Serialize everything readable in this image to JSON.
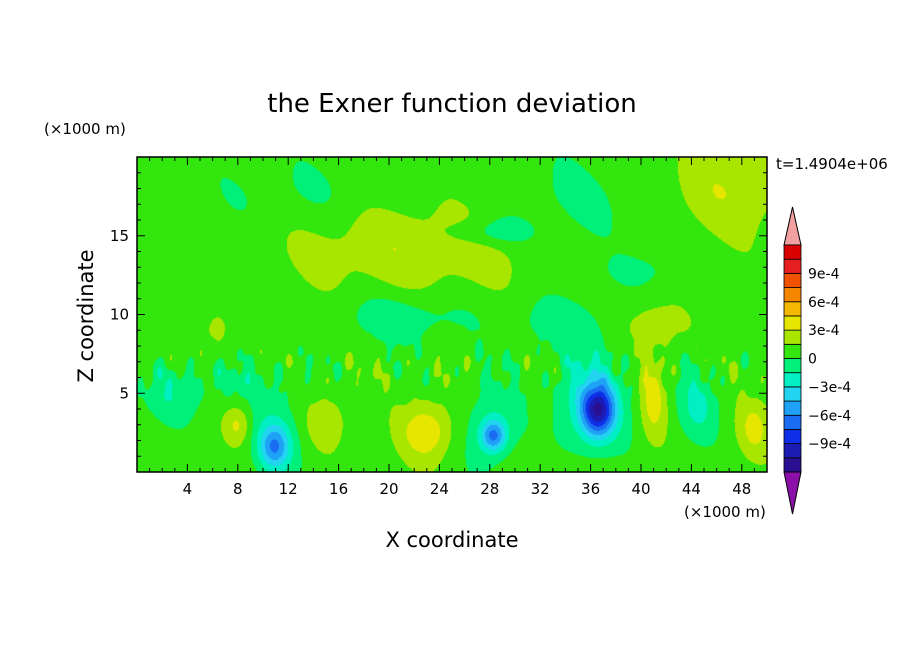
{
  "chart_data": {
    "type": "heatmap",
    "title": "the Exner function deviation",
    "xlabel": "X coordinate",
    "ylabel": "Z coordinate",
    "x_unit": "(×1000 m)",
    "y_unit": "(×1000 m)",
    "time_label": "t=1.4904e+06",
    "xlim": [
      0,
      50
    ],
    "ylim": [
      0,
      20
    ],
    "x_ticks": [
      4,
      8,
      12,
      16,
      20,
      24,
      28,
      32,
      36,
      40,
      44,
      48
    ],
    "y_ticks": [
      5,
      10,
      15
    ],
    "colorbar": {
      "levels": [
        -0.00105,
        -0.0009,
        -0.00075,
        -0.0006,
        -0.00045,
        -0.0003,
        -0.00015,
        0,
        0.00015,
        0.0003,
        0.00045,
        0.0006,
        0.00075,
        0.0009,
        0.00105
      ],
      "colors": [
        "#2a1090",
        "#1c1cb4",
        "#0e2fe6",
        "#1a6cf2",
        "#1fa2f6",
        "#22d4f0",
        "#00f0c4",
        "#00f07a",
        "#32e60e",
        "#a8e600",
        "#e6e600",
        "#f5b800",
        "#f58600",
        "#f05200",
        "#e62020",
        "#d80000"
      ],
      "under_color": "#8a10a8",
      "over_color": "#f2a0a0",
      "labels": [
        {
          "value": 0.0009,
          "text": "9e-4"
        },
        {
          "value": 0.0006,
          "text": "6e-4"
        },
        {
          "value": 0.0003,
          "text": "3e-4"
        },
        {
          "value": 0,
          "text": "0"
        },
        {
          "value": -0.0003,
          "text": "−3e-4"
        },
        {
          "value": -0.0006,
          "text": "−6e-4"
        },
        {
          "value": -0.0009,
          "text": "−9e-4"
        }
      ]
    },
    "field_features": [
      {
        "x": 36.6,
        "z": 3.9,
        "sx": 1.3,
        "sz": 1.6,
        "amp": -0.00085
      },
      {
        "x": 36.0,
        "z": 4.5,
        "sx": 2.7,
        "sz": 3.2,
        "amp": -0.00035
      },
      {
        "x": 28.3,
        "z": 2.3,
        "sx": 1.0,
        "sz": 1.0,
        "amp": -0.0006
      },
      {
        "x": 28.0,
        "z": 3.0,
        "sx": 2.2,
        "sz": 3.0,
        "amp": -0.0002
      },
      {
        "x": 10.9,
        "z": 1.6,
        "sx": 1.2,
        "sz": 1.4,
        "amp": -0.00055
      },
      {
        "x": 11.0,
        "z": 2.5,
        "sx": 2.4,
        "sz": 3.5,
        "amp": -0.00015
      },
      {
        "x": 44.5,
        "z": 4.2,
        "sx": 1.6,
        "sz": 2.2,
        "amp": -0.00025
      },
      {
        "x": 3.0,
        "z": 5.0,
        "sx": 2.5,
        "sz": 1.8,
        "amp": -0.0002
      },
      {
        "x": 23.0,
        "z": 2.6,
        "sx": 2.0,
        "sz": 1.8,
        "amp": 0.00035
      },
      {
        "x": 41.0,
        "z": 4.8,
        "sx": 1.0,
        "sz": 2.6,
        "amp": 0.0003
      },
      {
        "x": 49.0,
        "z": 2.8,
        "sx": 1.3,
        "sz": 1.8,
        "amp": 0.00025
      },
      {
        "x": 8.0,
        "z": 3.0,
        "sx": 1.0,
        "sz": 1.2,
        "amp": 0.00025
      },
      {
        "x": 15.0,
        "z": 3.2,
        "sx": 1.6,
        "sz": 1.6,
        "amp": 0.0002
      },
      {
        "x": 41.0,
        "z": 9.3,
        "sx": 2.2,
        "sz": 1.3,
        "amp": 0.0002
      },
      {
        "x": 6.3,
        "z": 9.0,
        "sx": 1.0,
        "sz": 1.3,
        "amp": 0.00015
      },
      {
        "x": 22.0,
        "z": 14.5,
        "sx": 10.0,
        "sz": 3.0,
        "amp": 0.0002
      },
      {
        "x": 47.0,
        "z": 18.0,
        "sx": 5.0,
        "sz": 3.0,
        "amp": 0.0002
      },
      {
        "x": 28.0,
        "z": 15.2,
        "sx": 3.5,
        "sz": 0.9,
        "amp": -0.0002
      },
      {
        "x": 14.0,
        "z": 17.5,
        "sx": 9.0,
        "sz": 2.5,
        "amp": -0.0001
      },
      {
        "x": 34.0,
        "z": 17.0,
        "sx": 7.0,
        "sz": 3.0,
        "amp": -0.00012
      },
      {
        "x": 40.0,
        "z": 12.8,
        "sx": 3.0,
        "sz": 1.0,
        "amp": -0.00012
      },
      {
        "x": 21.0,
        "z": 9.8,
        "sx": 5.0,
        "sz": 1.6,
        "amp": -0.00018
      },
      {
        "x": 33.5,
        "z": 9.5,
        "sx": 4.0,
        "sz": 1.8,
        "amp": -0.00015
      },
      {
        "x": 8.0,
        "z": 5.8,
        "sx": 3.0,
        "sz": 1.2,
        "amp": -0.00012
      }
    ]
  }
}
